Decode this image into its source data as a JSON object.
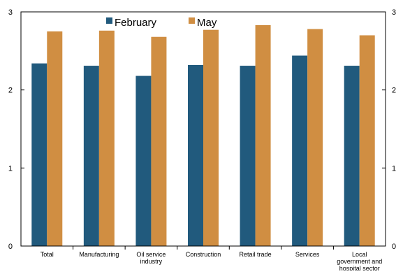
{
  "chart_data": {
    "type": "bar",
    "categories": [
      [
        "Total"
      ],
      [
        "Manufacturing"
      ],
      [
        "Oil service",
        "industry"
      ],
      [
        "Construction"
      ],
      [
        "Retail trade"
      ],
      [
        "Services"
      ],
      [
        "Local",
        "government and",
        "hospital sector"
      ]
    ],
    "series": [
      {
        "name": "February",
        "color": "#215a7d",
        "values": [
          2.34,
          2.31,
          2.18,
          2.32,
          2.31,
          2.44,
          2.31
        ]
      },
      {
        "name": "May",
        "color": "#d08e42",
        "values": [
          2.75,
          2.76,
          2.68,
          2.77,
          2.83,
          2.78,
          2.7
        ]
      }
    ],
    "yticks": [
      "0",
      "1",
      "2",
      "3"
    ],
    "right_yticks": [
      "0",
      "1",
      "2",
      "3"
    ],
    "ylim": [
      0,
      3
    ],
    "grid": false,
    "legend_position": "top-center",
    "title": "",
    "xlabel": "",
    "ylabel": ""
  }
}
